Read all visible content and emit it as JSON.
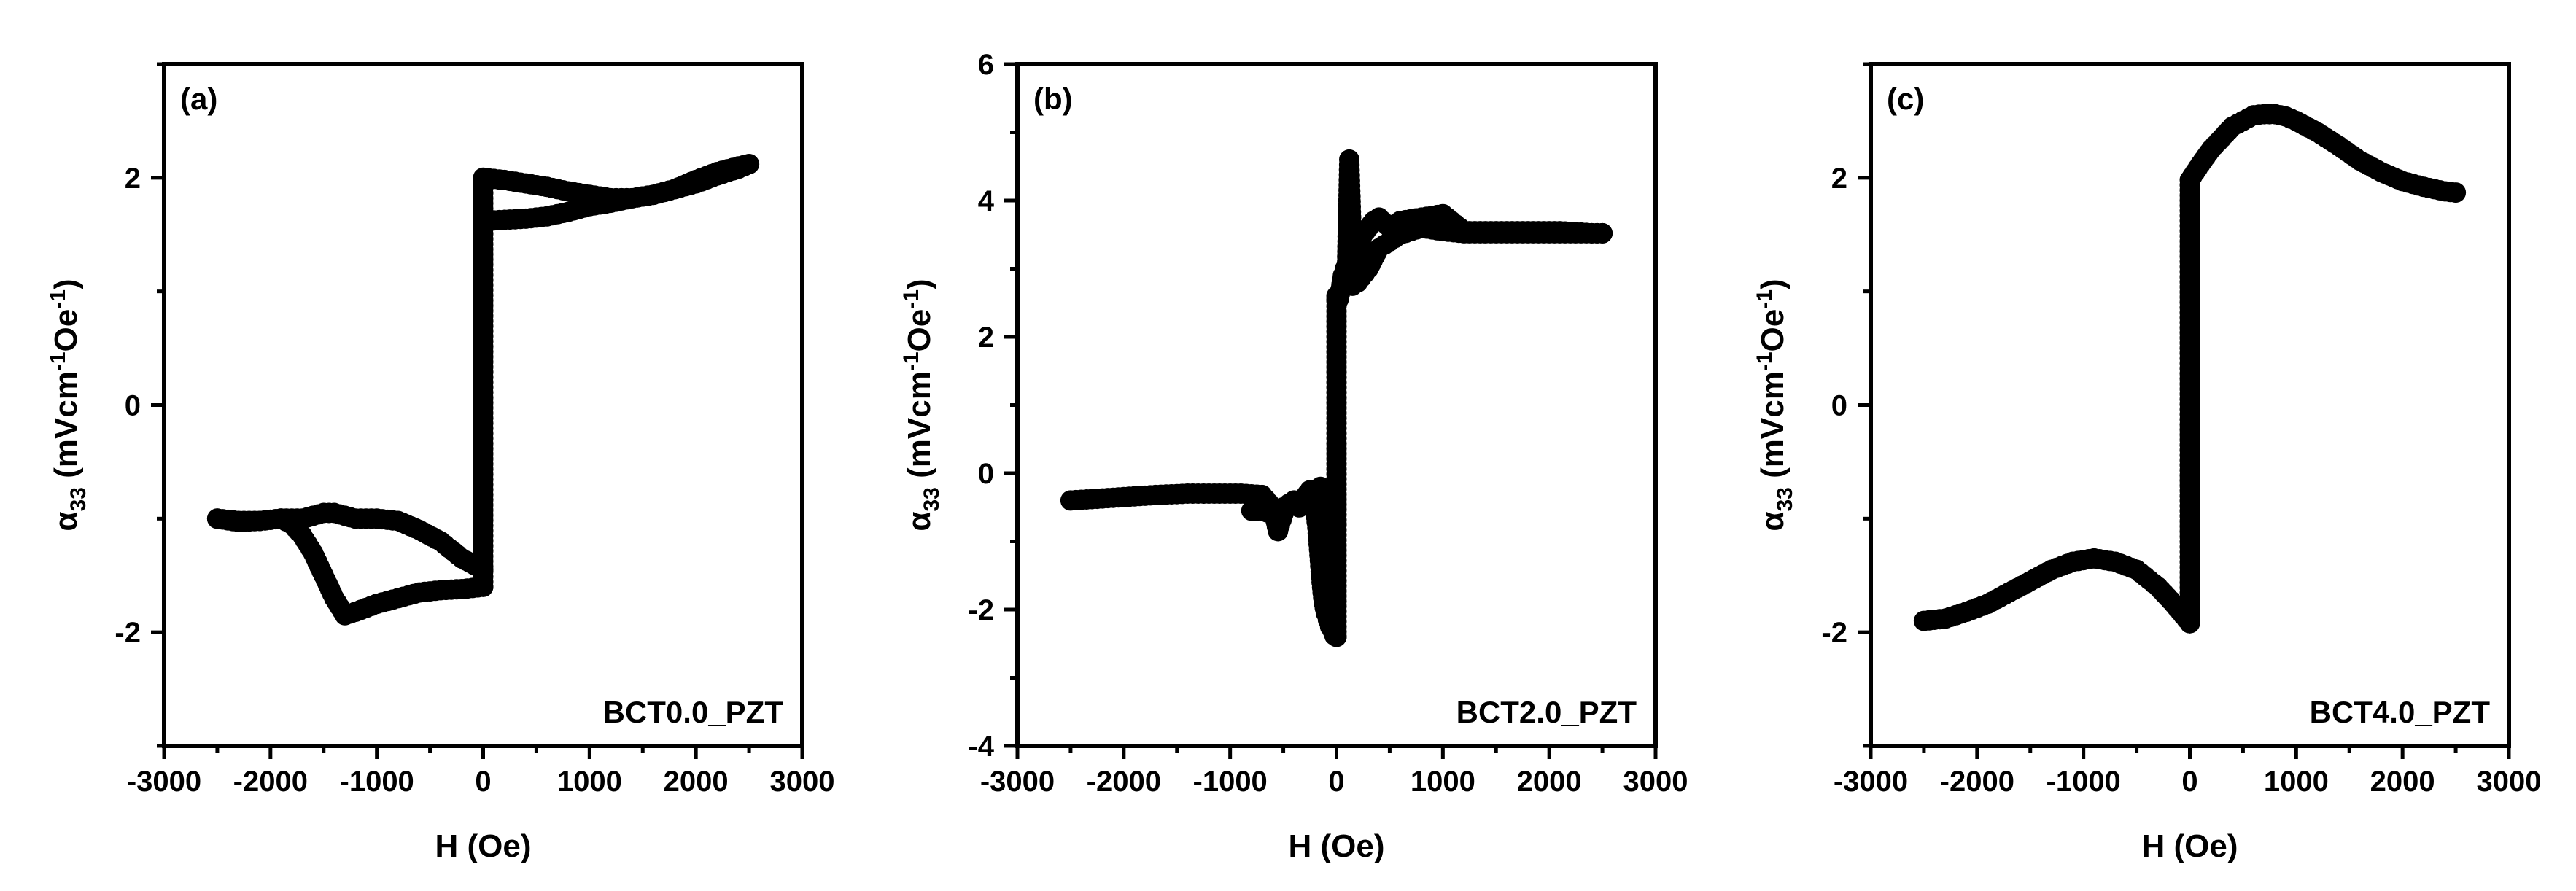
{
  "chart_data": [
    {
      "type": "scatter",
      "panel_label": "(a)",
      "sample_label": "BCT0.0_PZT",
      "xlabel": "H (Oe)",
      "ylabel": {
        "base": "α",
        "sub": "33",
        "unit_open": " (mVcm",
        "sup1": "-1",
        "unit_mid": "Oe",
        "sup2": "-1",
        "unit_close": ")"
      },
      "xlim": [
        -3000,
        3000
      ],
      "ylim": [
        -3,
        3
      ],
      "xticks": [
        -3000,
        -2000,
        -1000,
        0,
        1000,
        2000,
        3000
      ],
      "xtick_labels": [
        "-3000",
        "-2000",
        "-1000",
        "0",
        "1000",
        "2000",
        "3000"
      ],
      "yticks": [
        -2,
        0,
        2
      ],
      "ytick_labels": [
        "-2",
        "0",
        "2"
      ],
      "series": [
        {
          "x": [
            -2500,
            -2300,
            -2100,
            -1900,
            -1700,
            -1500,
            -1400,
            -1200,
            -1000,
            -800,
            -600,
            -400,
            -200,
            0
          ],
          "y": [
            -1.0,
            -1.02,
            -1.02,
            -1.0,
            -1.0,
            -0.95,
            -0.95,
            -1.0,
            -1.0,
            -1.02,
            -1.1,
            -1.2,
            -1.35,
            -1.45
          ]
        },
        {
          "x": [
            0,
            -200,
            -400,
            -600,
            -800,
            -1000,
            -1200,
            -1300,
            -1400,
            -1500,
            -1600,
            -1700,
            -1800,
            -1900,
            -2100,
            -2300,
            -2500
          ],
          "y": [
            -1.6,
            -1.62,
            -1.63,
            -1.65,
            -1.7,
            -1.75,
            -1.82,
            -1.85,
            -1.7,
            -1.5,
            -1.3,
            -1.15,
            -1.05,
            -1.0,
            -1.02,
            -1.03,
            -1.0
          ]
        },
        {
          "x": [
            0,
            0,
            200,
            400,
            600,
            800,
            1000,
            1200,
            1400,
            1600,
            1800,
            2000,
            2200,
            2400,
            2500
          ],
          "y": [
            -1.6,
            2.0,
            1.98,
            1.95,
            1.92,
            1.88,
            1.85,
            1.82,
            1.82,
            1.85,
            1.9,
            1.98,
            2.05,
            2.1,
            2.12
          ]
        },
        {
          "x": [
            2500,
            2400,
            2200,
            2000,
            1800,
            1600,
            1400,
            1200,
            1000,
            800,
            600,
            400,
            200,
            0
          ],
          "y": [
            2.12,
            2.08,
            2.02,
            1.95,
            1.9,
            1.85,
            1.82,
            1.78,
            1.75,
            1.7,
            1.66,
            1.64,
            1.63,
            1.62
          ]
        }
      ]
    },
    {
      "type": "scatter",
      "panel_label": "(b)",
      "sample_label": "BCT2.0_PZT",
      "xlabel": "H (Oe)",
      "ylabel": {
        "base": "α",
        "sub": "33",
        "unit_open": " (mVcm",
        "sup1": "-1",
        "unit_mid": "Oe",
        "sup2": "-1",
        "unit_close": ")"
      },
      "xlim": [
        -3000,
        3000
      ],
      "ylim": [
        -4,
        6
      ],
      "xticks": [
        -3000,
        -2000,
        -1000,
        0,
        1000,
        2000,
        3000
      ],
      "xtick_labels": [
        "-3000",
        "-2000",
        "-1000",
        "0",
        "1000",
        "2000",
        "3000"
      ],
      "yticks": [
        -4,
        -2,
        0,
        2,
        4,
        6
      ],
      "ytick_labels": [
        "-4",
        "-2",
        "0",
        "2",
        "4",
        "6"
      ],
      "series": [
        {
          "x": [
            -2500,
            -2300,
            -2000,
            -1700,
            -1400,
            -1100,
            -900,
            -700,
            -600,
            -550,
            -500,
            -450,
            -400,
            -350,
            -300,
            -250,
            -200,
            -150,
            -100,
            -60,
            -30,
            0
          ],
          "y": [
            -0.4,
            -0.38,
            -0.35,
            -0.32,
            -0.3,
            -0.3,
            -0.3,
            -0.32,
            -0.5,
            -0.85,
            -0.6,
            -0.45,
            -0.4,
            -0.5,
            -0.35,
            -0.25,
            -0.55,
            -0.2,
            -0.5,
            -0.55,
            -0.7,
            -0.75
          ]
        },
        {
          "x": [
            -800,
            -700,
            -600,
            -500,
            -400,
            -300,
            -250,
            -200,
            -180,
            -160,
            -140,
            -120,
            -100,
            -80,
            -60,
            -40,
            -20,
            0
          ],
          "y": [
            -0.55,
            -0.55,
            -0.6,
            -0.5,
            -0.45,
            -0.35,
            -0.4,
            -0.55,
            -0.8,
            -1.2,
            -1.6,
            -1.9,
            -2.05,
            -2.15,
            -2.25,
            -2.3,
            -2.38,
            -2.4
          ]
        },
        {
          "x": [
            0,
            0,
            20,
            40,
            60,
            80,
            100,
            120,
            140,
            160,
            180,
            200,
            250,
            300,
            350,
            400,
            500,
            600,
            800,
            1000,
            1200,
            1500,
            1800,
            2100,
            2400,
            2500
          ],
          "y": [
            -2.4,
            2.6,
            2.55,
            2.7,
            2.9,
            3.0,
            3.1,
            4.6,
            3.6,
            3.2,
            2.8,
            3.3,
            3.5,
            3.6,
            3.7,
            3.75,
            3.6,
            3.7,
            3.75,
            3.8,
            3.55,
            3.55,
            3.55,
            3.55,
            3.52,
            3.52
          ]
        },
        {
          "x": [
            2500,
            2000,
            1500,
            1200,
            1000,
            800,
            600,
            500,
            400,
            300,
            200,
            150,
            100,
            50,
            0
          ],
          "y": [
            3.52,
            3.52,
            3.52,
            3.52,
            3.55,
            3.6,
            3.5,
            3.4,
            3.3,
            3.0,
            2.8,
            2.75,
            2.85,
            2.7,
            2.55
          ]
        }
      ]
    },
    {
      "type": "scatter",
      "panel_label": "(c)",
      "sample_label": "BCT4.0_PZT",
      "xlabel": "H (Oe)",
      "ylabel": {
        "base": "α",
        "sub": "33",
        "unit_open": " (mVcm",
        "sup1": "-1",
        "unit_mid": "Oe",
        "sup2": "-1",
        "unit_close": ")"
      },
      "xlim": [
        -3000,
        3000
      ],
      "ylim": [
        -3,
        3
      ],
      "xticks": [
        -3000,
        -2000,
        -1000,
        0,
        1000,
        2000,
        3000
      ],
      "xtick_labels": [
        "-3000",
        "-2000",
        "-1000",
        "0",
        "1000",
        "2000",
        "3000"
      ],
      "yticks": [
        -2,
        0,
        2
      ],
      "ytick_labels": [
        "-2",
        "0",
        "2"
      ],
      "series": [
        {
          "x": [
            -2500,
            -2300,
            -2100,
            -1900,
            -1700,
            -1500,
            -1300,
            -1100,
            -900,
            -700,
            -500,
            -300,
            -150,
            0
          ],
          "y": [
            -1.9,
            -1.88,
            -1.82,
            -1.75,
            -1.65,
            -1.55,
            -1.45,
            -1.38,
            -1.35,
            -1.38,
            -1.45,
            -1.6,
            -1.75,
            -1.92
          ]
        },
        {
          "x": [
            0,
            0,
            100,
            200,
            300,
            400,
            500,
            600,
            700,
            800,
            900,
            1000,
            1200,
            1400,
            1600,
            1800,
            2000,
            2200,
            2400,
            2500
          ],
          "y": [
            -1.92,
            1.98,
            2.12,
            2.25,
            2.35,
            2.45,
            2.5,
            2.55,
            2.56,
            2.56,
            2.54,
            2.5,
            2.4,
            2.28,
            2.15,
            2.05,
            1.97,
            1.92,
            1.88,
            1.87
          ]
        }
      ]
    }
  ]
}
